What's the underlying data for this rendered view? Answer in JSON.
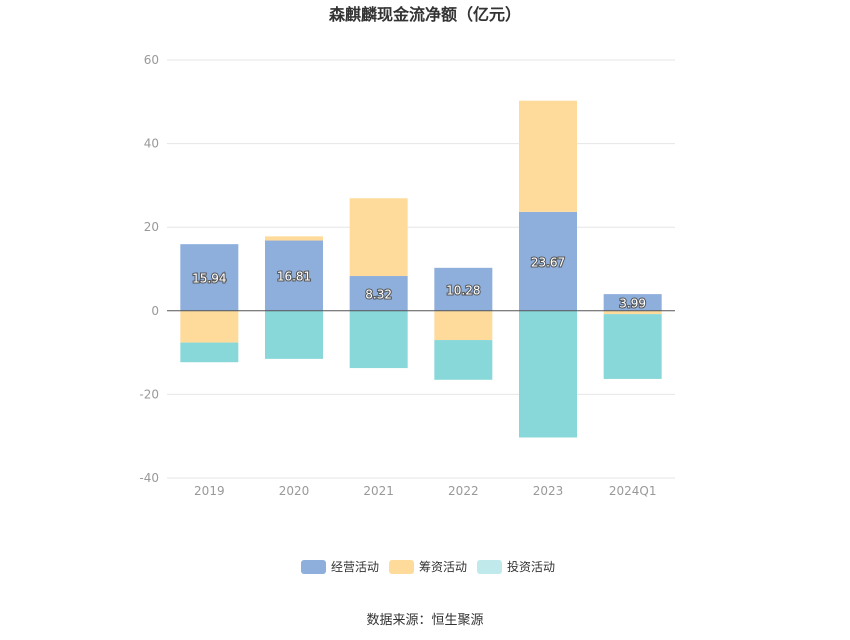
{
  "chart_data": {
    "type": "bar",
    "stacked": true,
    "title": "森麒麟现金流净额（亿元）",
    "categories": [
      "2019",
      "2020",
      "2021",
      "2022",
      "2023",
      "2024Q1"
    ],
    "ylim": [
      -40,
      60
    ],
    "yticks": [
      60,
      40,
      20,
      0,
      -20,
      -40
    ],
    "series": [
      {
        "name": "经营活动",
        "color": "#8eaedc",
        "values": [
          15.94,
          16.81,
          8.32,
          10.28,
          23.67,
          3.99
        ],
        "labels": [
          "15.94",
          "16.81",
          "8.32",
          "10.28",
          "23.67",
          "3.99"
        ]
      },
      {
        "name": "筹资活动",
        "color": "#fedb9b",
        "values": [
          -7.6,
          1.0,
          18.6,
          -7.0,
          26.6,
          -0.8
        ]
      },
      {
        "name": "投资活动",
        "color": "#88d7d9",
        "legend_color": "#bfe9ea",
        "values": [
          -4.7,
          -11.5,
          -13.7,
          -9.5,
          -30.3,
          -15.5
        ]
      }
    ],
    "legend_position": "bottom-center",
    "source": "数据来源：恒生聚源"
  }
}
